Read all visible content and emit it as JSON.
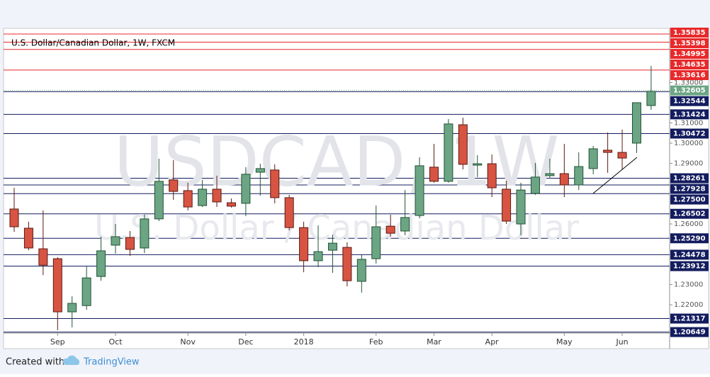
{
  "chart_data": {
    "type": "candlestick",
    "title": "U.S. Dollar/Canadian Dollar, 1W, FXCM",
    "watermark": "USDCAD, 1W",
    "watermark_subtitle": "U.S. Dollar / Canadian Dollar",
    "footer": {
      "created": "Created with",
      "brand": "TradingView"
    },
    "categories": [
      null,
      null,
      null,
      "Sep",
      null,
      null,
      null,
      "Oct",
      null,
      null,
      null,
      null,
      "Nov",
      null,
      null,
      null,
      "Dec",
      null,
      null,
      null,
      "2018",
      null,
      null,
      null,
      null,
      "Feb",
      null,
      null,
      null,
      "Mar",
      null,
      null,
      null,
      "Apr",
      null,
      null,
      null,
      null,
      "May",
      null,
      null,
      null,
      "Jun",
      null,
      null
    ],
    "open": [
      1.2674,
      1.2579,
      1.2477,
      1.2428,
      1.2165,
      1.2196,
      1.234,
      1.2495,
      1.2533,
      1.2481,
      1.2625,
      1.2818,
      1.2765,
      1.2691,
      1.2772,
      1.2705,
      1.2702,
      1.2856,
      1.2867,
      1.273,
      1.2582,
      1.2418,
      1.247,
      1.2484,
      1.2316,
      1.2428,
      1.2589,
      1.2565,
      1.2642,
      1.2881,
      1.2811,
      1.3091,
      1.2891,
      1.2898,
      1.2772,
      1.26,
      1.2751,
      1.2839,
      1.2849,
      1.2793,
      1.2874,
      1.2965,
      1.2954,
      1.3,
      1.3186
    ],
    "high": [
      1.2779,
      1.2611,
      1.2667,
      1.2435,
      1.2242,
      1.2393,
      1.2537,
      1.26,
      1.2565,
      1.2646,
      1.2923,
      1.2916,
      1.2804,
      1.2818,
      1.2839,
      1.2726,
      1.2881,
      1.2898,
      1.2895,
      1.2744,
      1.2611,
      1.2593,
      1.2547,
      1.2509,
      1.2446,
      1.2691,
      1.2646,
      1.2768,
      1.293,
      1.2996,
      1.3119,
      1.3126,
      1.294,
      1.2944,
      1.2814,
      1.2804,
      1.2902,
      1.2923,
      1.2996,
      1.2954,
      1.2986,
      1.3053,
      1.3067,
      1.32,
      1.3382
    ],
    "low": [
      1.2561,
      1.247,
      1.2347,
      1.2074,
      1.2088,
      1.2175,
      1.2319,
      1.2453,
      1.2442,
      1.2456,
      1.2614,
      1.2719,
      1.2667,
      1.2684,
      1.2684,
      1.2681,
      1.2639,
      1.274,
      1.2702,
      1.2568,
      1.2361,
      1.2386,
      1.2358,
      1.2291,
      1.226,
      1.2404,
      1.2537,
      1.2544,
      1.2628,
      1.2804,
      1.2804,
      1.287,
      1.2832,
      1.2733,
      1.26,
      1.2544,
      1.2744,
      1.2825,
      1.2733,
      1.2768,
      1.2846,
      1.2853,
      1.287,
      1.2951,
      1.3165
    ],
    "close": [
      1.2586,
      1.2481,
      1.2396,
      1.2165,
      1.2207,
      1.2333,
      1.2467,
      1.2537,
      1.2474,
      1.2625,
      1.2811,
      1.2761,
      1.2684,
      1.2772,
      1.2709,
      1.2688,
      1.2846,
      1.2874,
      1.273,
      1.2582,
      1.2418,
      1.2463,
      1.2505,
      1.2319,
      1.2425,
      1.2586,
      1.2554,
      1.2632,
      1.2888,
      1.2811,
      1.3095,
      1.2895,
      1.2898,
      1.2779,
      1.2614,
      1.2768,
      1.2832,
      1.2849,
      1.2793,
      1.2884,
      1.2972,
      1.2954,
      1.2926,
      1.32,
      1.3256
    ],
    "up_color": "#6ba583",
    "down_color": "#d75442",
    "ylim": [
      1.206,
      1.3568
    ],
    "yticks": [
      {
        "value": 1.33,
        "label": "1.33000"
      },
      {
        "value": 1.31,
        "label": "1.31000"
      },
      {
        "value": 1.3,
        "label": "1.30000"
      },
      {
        "value": 1.29,
        "label": "1.29000"
      },
      {
        "value": 1.26,
        "label": "1.26000"
      },
      {
        "value": 1.23,
        "label": "1.23000"
      },
      {
        "value": 1.22,
        "label": "1.22000"
      }
    ],
    "levels": [
      {
        "price": 1.35835,
        "color": "#e8292b"
      },
      {
        "price": 1.35398,
        "color": "#e8292b"
      },
      {
        "price": 1.34995,
        "color": "#e8292b"
      },
      {
        "price": 1.34635,
        "color": "#e8292b"
      },
      {
        "price": 1.33616,
        "color": "#e8292b"
      },
      {
        "price": 1.32605,
        "color": "#6ba583",
        "dashed": true
      },
      {
        "price": 1.32544,
        "color": "#131c5e"
      },
      {
        "price": 1.31424,
        "color": "#131c5e"
      },
      {
        "price": 1.30472,
        "color": "#131c5e"
      },
      {
        "price": 1.28261,
        "color": "#131c5e"
      },
      {
        "price": 1.27928,
        "color": "#131c5e"
      },
      {
        "price": {
          "value": 1.275,
          "label": "1.27500"
        },
        "color": "#131c5e"
      },
      {
        "price": 1.26502,
        "color": "#131c5e"
      },
      {
        "price": {
          "value": 1.2529,
          "label": "1.25290"
        },
        "color": "#131c5e"
      },
      {
        "price": 1.24478,
        "color": "#131c5e"
      },
      {
        "price": 1.23912,
        "color": "#131c5e"
      },
      {
        "price": 1.21317,
        "color": "#131c5e"
      },
      {
        "price": 1.20649,
        "color": "#131c5e"
      }
    ]
  }
}
